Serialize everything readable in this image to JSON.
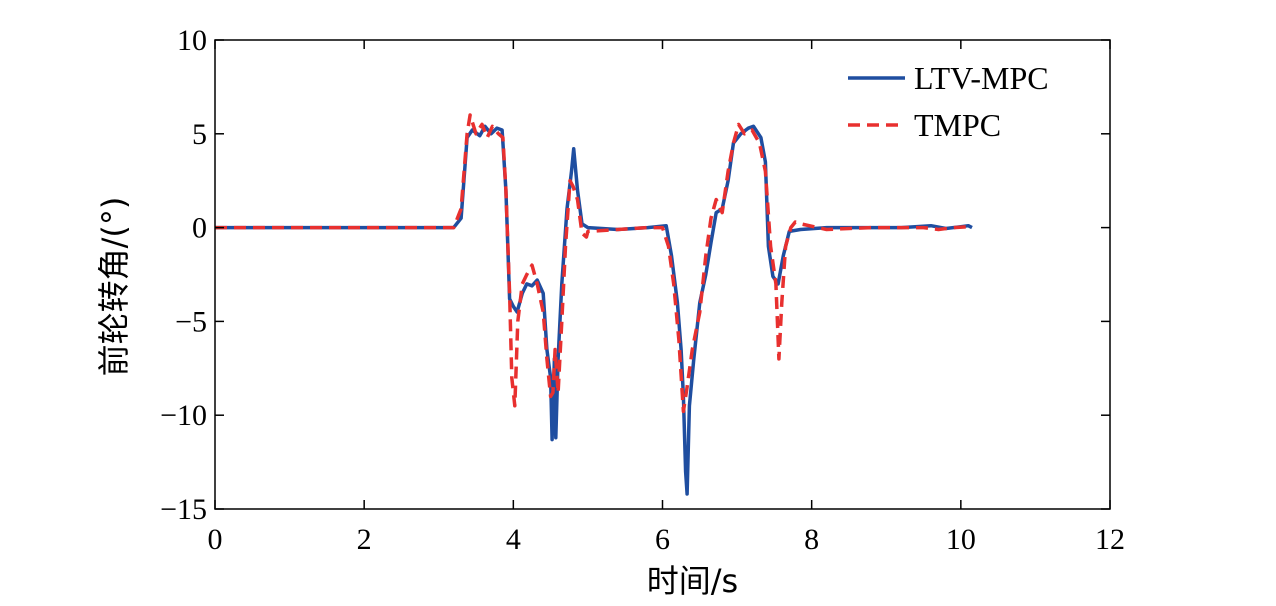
{
  "chart_data": {
    "type": "line",
    "title": "",
    "xlabel": "时间/s",
    "ylabel": "前轮转角/(°)",
    "xlim": [
      0,
      12
    ],
    "ylim": [
      -15,
      10
    ],
    "xticks": [
      0,
      2,
      4,
      6,
      8,
      10,
      12
    ],
    "yticks": [
      10,
      5,
      0,
      -5,
      -10,
      -15
    ],
    "ytick_labels": [
      "10",
      "5",
      "0",
      "−5",
      "−10",
      "−15"
    ],
    "grid": false,
    "legend_position": "top-right",
    "series": [
      {
        "name": "LTV-MPC",
        "color": "#1f4ea0",
        "style": "solid",
        "points": [
          [
            0,
            0
          ],
          [
            3.2,
            0
          ],
          [
            3.3,
            0.5
          ],
          [
            3.38,
            4.8
          ],
          [
            3.45,
            5.2
          ],
          [
            3.55,
            4.9
          ],
          [
            3.62,
            5.4
          ],
          [
            3.7,
            5.0
          ],
          [
            3.78,
            5.3
          ],
          [
            3.85,
            5.2
          ],
          [
            3.9,
            2.0
          ],
          [
            3.95,
            -3.8
          ],
          [
            4.0,
            -4.2
          ],
          [
            4.05,
            -4.5
          ],
          [
            4.12,
            -3.5
          ],
          [
            4.18,
            -3.0
          ],
          [
            4.25,
            -3.1
          ],
          [
            4.32,
            -2.8
          ],
          [
            4.4,
            -3.5
          ],
          [
            4.45,
            -6.5
          ],
          [
            4.5,
            -8.0
          ],
          [
            4.52,
            -11.3
          ],
          [
            4.55,
            -7.0
          ],
          [
            4.57,
            -11.2
          ],
          [
            4.6,
            -7.0
          ],
          [
            4.65,
            -3.0
          ],
          [
            4.72,
            1.0
          ],
          [
            4.78,
            3.0
          ],
          [
            4.81,
            4.2
          ],
          [
            4.86,
            2.0
          ],
          [
            4.92,
            0.2
          ],
          [
            5.0,
            0.0
          ],
          [
            5.4,
            -0.1
          ],
          [
            5.8,
            0.0
          ],
          [
            6.05,
            0.1
          ],
          [
            6.12,
            -1.5
          ],
          [
            6.2,
            -4.0
          ],
          [
            6.25,
            -6.5
          ],
          [
            6.28,
            -9.0
          ],
          [
            6.31,
            -13.0
          ],
          [
            6.33,
            -14.2
          ],
          [
            6.36,
            -9.5
          ],
          [
            6.42,
            -7.0
          ],
          [
            6.5,
            -4.0
          ],
          [
            6.58,
            -2.5
          ],
          [
            6.65,
            -0.8
          ],
          [
            6.72,
            0.8
          ],
          [
            6.8,
            1.0
          ],
          [
            6.88,
            2.5
          ],
          [
            6.95,
            4.5
          ],
          [
            7.05,
            5.0
          ],
          [
            7.15,
            5.3
          ],
          [
            7.22,
            5.4
          ],
          [
            7.32,
            4.8
          ],
          [
            7.38,
            3.5
          ],
          [
            7.42,
            -1.0
          ],
          [
            7.48,
            -2.6
          ],
          [
            7.55,
            -3.0
          ],
          [
            7.62,
            -1.5
          ],
          [
            7.7,
            -0.2
          ],
          [
            7.85,
            -0.1
          ],
          [
            8.2,
            0.0
          ],
          [
            8.8,
            0.0
          ],
          [
            9.2,
            0.0
          ],
          [
            9.6,
            0.1
          ],
          [
            9.8,
            -0.05
          ],
          [
            10.0,
            0.05
          ],
          [
            10.1,
            0.1
          ],
          [
            10.15,
            0.0
          ]
        ]
      },
      {
        "name": "TMPC",
        "color": "#e8302f",
        "style": "dashed",
        "points": [
          [
            0,
            0
          ],
          [
            3.2,
            0
          ],
          [
            3.3,
            1.0
          ],
          [
            3.38,
            5.0
          ],
          [
            3.42,
            6.0
          ],
          [
            3.5,
            5.0
          ],
          [
            3.58,
            5.5
          ],
          [
            3.65,
            4.8
          ],
          [
            3.72,
            5.4
          ],
          [
            3.8,
            5.0
          ],
          [
            3.86,
            4.8
          ],
          [
            3.9,
            2.0
          ],
          [
            3.95,
            -3.5
          ],
          [
            3.98,
            -8.0
          ],
          [
            4.02,
            -9.5
          ],
          [
            4.06,
            -5.0
          ],
          [
            4.12,
            -3.0
          ],
          [
            4.18,
            -2.5
          ],
          [
            4.25,
            -2.0
          ],
          [
            4.32,
            -3.0
          ],
          [
            4.4,
            -4.5
          ],
          [
            4.45,
            -7.0
          ],
          [
            4.5,
            -9.0
          ],
          [
            4.53,
            -8.8
          ],
          [
            4.56,
            -6.5
          ],
          [
            4.6,
            -8.8
          ],
          [
            4.65,
            -5.0
          ],
          [
            4.7,
            -1.0
          ],
          [
            4.76,
            2.5
          ],
          [
            4.8,
            2.2
          ],
          [
            4.86,
            1.5
          ],
          [
            4.92,
            -0.3
          ],
          [
            4.98,
            -0.5
          ],
          [
            5.0,
            -0.2
          ],
          [
            5.4,
            -0.1
          ],
          [
            5.8,
            0.0
          ],
          [
            6.0,
            0.0
          ],
          [
            6.08,
            -1.0
          ],
          [
            6.15,
            -3.0
          ],
          [
            6.22,
            -6.0
          ],
          [
            6.28,
            -9.8
          ],
          [
            6.33,
            -8.5
          ],
          [
            6.4,
            -6.5
          ],
          [
            6.5,
            -4.5
          ],
          [
            6.58,
            -1.5
          ],
          [
            6.65,
            0.5
          ],
          [
            6.72,
            1.5
          ],
          [
            6.8,
            0.8
          ],
          [
            6.88,
            3.0
          ],
          [
            6.95,
            4.5
          ],
          [
            7.02,
            5.5
          ],
          [
            7.1,
            5.0
          ],
          [
            7.2,
            5.2
          ],
          [
            7.3,
            4.5
          ],
          [
            7.38,
            3.0
          ],
          [
            7.45,
            -1.0
          ],
          [
            7.52,
            -3.0
          ],
          [
            7.56,
            -7.0
          ],
          [
            7.6,
            -4.0
          ],
          [
            7.65,
            -1.0
          ],
          [
            7.72,
            0.0
          ],
          [
            7.78,
            0.3
          ],
          [
            7.85,
            0.2
          ],
          [
            8.2,
            -0.1
          ],
          [
            8.8,
            0.0
          ],
          [
            9.2,
            0.0
          ],
          [
            9.5,
            0.0
          ],
          [
            9.7,
            -0.1
          ],
          [
            9.9,
            0.0
          ],
          [
            10.1,
            0.05
          ]
        ]
      }
    ]
  }
}
